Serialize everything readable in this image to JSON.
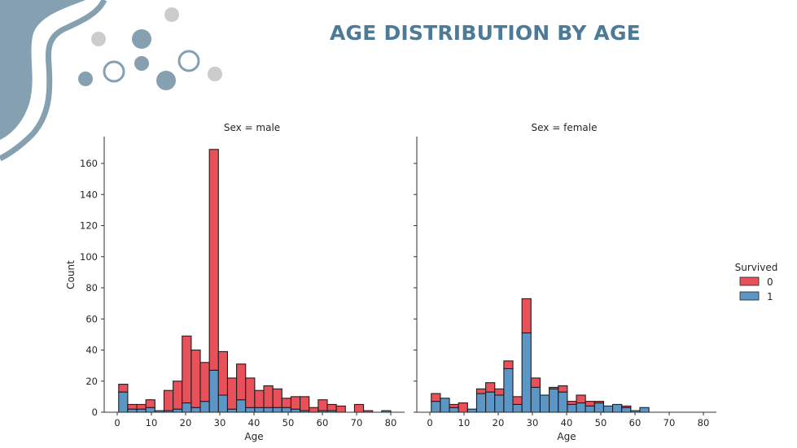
{
  "slide": {
    "title": "AGE DISTRIBUTION BY AGE",
    "accent_color": "#4d7a96",
    "decor_color": "#85a0b1",
    "decor_gray": "#cccccc"
  },
  "chart_data": {
    "type": "bar",
    "stacked": true,
    "title": "AGE DISTRIBUTION BY AGE",
    "xlabel": "Age",
    "ylabel": "Count",
    "xlim": [
      -4,
      84
    ],
    "ylim": [
      0,
      177
    ],
    "x_ticks": [
      0,
      10,
      20,
      30,
      40,
      50,
      60,
      70,
      80
    ],
    "y_ticks": [
      0,
      20,
      40,
      60,
      80,
      100,
      120,
      140,
      160
    ],
    "bin_start": 0.42,
    "bin_end": 80,
    "bin_count": 30,
    "grid": false,
    "legend": {
      "title": "Survived",
      "placement": "right",
      "entries": [
        {
          "label": "0",
          "color": "#e8515a"
        },
        {
          "label": "1",
          "color": "#5b96c6"
        }
      ]
    },
    "panels": [
      {
        "title": "Sex = male",
        "series": [
          {
            "name": "1",
            "values": [
              13,
              2,
              2,
              3,
              1,
              1,
              2,
              6,
              3,
              7,
              27,
              11,
              2,
              8,
              3,
              3,
              3,
              3,
              3,
              2,
              1,
              0,
              1,
              1,
              0,
              0,
              0,
              0,
              0,
              1
            ]
          },
          {
            "name": "0",
            "values": [
              5,
              3,
              3,
              5,
              0,
              13,
              18,
              43,
              37,
              25,
              142,
              28,
              20,
              23,
              19,
              11,
              14,
              12,
              6,
              8,
              9,
              3,
              7,
              4,
              4,
              0,
              5,
              1,
              0,
              0
            ]
          }
        ],
        "totals": [
          18,
          5,
          5,
          8,
          1,
          14,
          20,
          49,
          40,
          32,
          169,
          39,
          22,
          31,
          22,
          14,
          17,
          15,
          9,
          10,
          10,
          3,
          8,
          5,
          4,
          0,
          5,
          1,
          0,
          1
        ]
      },
      {
        "title": "Sex = female",
        "series": [
          {
            "name": "1",
            "values": [
              7,
              9,
              3,
              0,
              2,
              12,
              13,
              11,
              28,
              5,
              51,
              16,
              11,
              15,
              13,
              5,
              6,
              4,
              6,
              4,
              5,
              3,
              1,
              3,
              0,
              0,
              0,
              0,
              0,
              0
            ]
          },
          {
            "name": "0",
            "values": [
              5,
              0,
              2,
              6,
              0,
              3,
              6,
              4,
              5,
              5,
              22,
              6,
              0,
              1,
              4,
              2,
              5,
              3,
              1,
              0,
              0,
              1,
              0,
              0,
              0,
              0,
              0,
              0,
              0,
              0
            ]
          }
        ],
        "totals": [
          12,
          9,
          5,
          6,
          2,
          15,
          19,
          15,
          33,
          10,
          73,
          22,
          11,
          16,
          17,
          7,
          11,
          7,
          7,
          4,
          5,
          4,
          1,
          3,
          0,
          0,
          0,
          0,
          0,
          0
        ]
      }
    ]
  }
}
